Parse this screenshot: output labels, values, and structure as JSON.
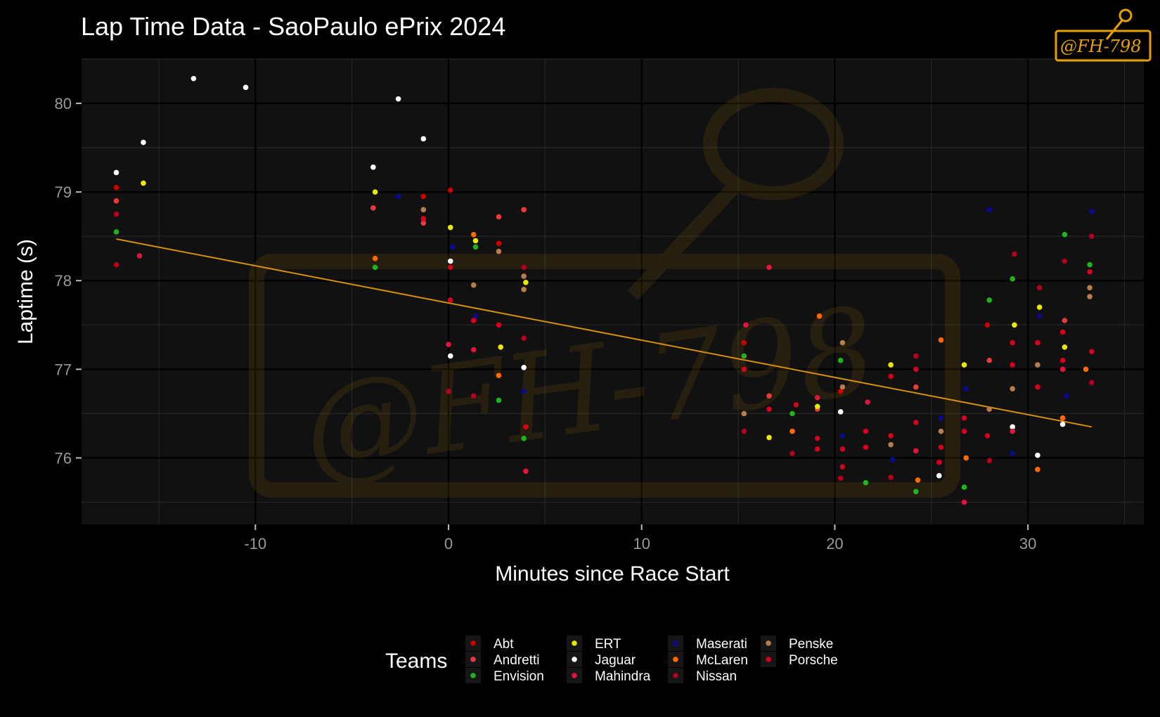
{
  "chart_data": {
    "type": "scatter",
    "title": "Lap Time Data - SaoPaulo ePrix 2024",
    "xlabel": "Minutes since Race Start",
    "ylabel": "Laptime (s)",
    "xlim": [
      -19,
      36
    ],
    "ylim": [
      75.25,
      80.5
    ],
    "x_ticks": [
      -10,
      0,
      10,
      20,
      30
    ],
    "y_ticks": [
      76,
      77,
      78,
      79,
      80
    ],
    "grid": true,
    "legend": {
      "title": "Teams",
      "position": "bottom"
    },
    "trend_line": {
      "color": "#d4900a",
      "points": [
        [
          -17.2,
          78.47
        ],
        [
          33.3,
          76.35
        ]
      ]
    },
    "watermark": "@FH-798",
    "series": [
      {
        "name": "Abt",
        "color": "#cc0000",
        "points": [
          [
            -17.2,
            79.05
          ],
          [
            -1.3,
            78.95
          ],
          [
            0.1,
            79.02
          ],
          [
            2.6,
            78.42
          ],
          [
            15.3,
            77.3
          ],
          [
            20.3,
            76.75
          ],
          [
            27.9,
            77.5
          ]
        ]
      },
      {
        "name": "Andretti",
        "color": "#e83a3a",
        "points": [
          [
            -17.2,
            78.9
          ],
          [
            -3.9,
            78.82
          ],
          [
            -1.3,
            78.65
          ],
          [
            2.6,
            78.72
          ],
          [
            3.9,
            78.8
          ],
          [
            16.6,
            76.7
          ],
          [
            19.1,
            76.55
          ],
          [
            24.2,
            76.8
          ],
          [
            28.0,
            77.1
          ],
          [
            31.9,
            77.55
          ]
        ]
      },
      {
        "name": "Envision",
        "color": "#1fb31f",
        "points": [
          [
            -17.2,
            78.55
          ],
          [
            -3.8,
            78.15
          ],
          [
            1.4,
            78.38
          ],
          [
            2.6,
            76.65
          ],
          [
            3.9,
            76.22
          ],
          [
            15.3,
            77.15
          ],
          [
            17.8,
            76.5
          ],
          [
            20.3,
            77.1
          ],
          [
            21.6,
            75.72
          ],
          [
            24.2,
            75.62
          ],
          [
            26.7,
            75.67
          ],
          [
            28.0,
            77.78
          ],
          [
            29.2,
            78.02
          ],
          [
            31.9,
            78.52
          ],
          [
            33.2,
            78.18
          ]
        ]
      },
      {
        "name": "ERT",
        "color": "#e8e800",
        "points": [
          [
            -15.8,
            79.1
          ],
          [
            -3.8,
            79.0
          ],
          [
            0.1,
            78.6
          ],
          [
            1.4,
            78.45
          ],
          [
            2.7,
            77.25
          ],
          [
            4.0,
            77.98
          ],
          [
            16.6,
            76.23
          ],
          [
            19.1,
            76.58
          ],
          [
            22.9,
            77.05
          ],
          [
            26.7,
            77.05
          ],
          [
            29.3,
            77.5
          ],
          [
            30.6,
            77.7
          ],
          [
            31.9,
            77.25
          ]
        ]
      },
      {
        "name": "Jaguar",
        "color": "#ffffff",
        "points": [
          [
            -17.2,
            79.22
          ],
          [
            -15.8,
            79.56
          ],
          [
            -13.2,
            80.28
          ],
          [
            -10.5,
            80.18
          ],
          [
            -3.9,
            79.28
          ],
          [
            -2.6,
            80.05
          ],
          [
            -1.3,
            79.6
          ],
          [
            0.1,
            77.15
          ],
          [
            0.1,
            78.22
          ],
          [
            3.9,
            77.02
          ],
          [
            20.3,
            76.52
          ],
          [
            25.4,
            75.8
          ],
          [
            29.2,
            76.35
          ],
          [
            30.5,
            76.03
          ],
          [
            31.8,
            76.38
          ]
        ]
      },
      {
        "name": "Mahindra",
        "color": "#e0143c",
        "points": [
          [
            -16.0,
            78.28
          ],
          [
            0.0,
            77.28
          ],
          [
            1.3,
            77.22
          ],
          [
            4.0,
            75.85
          ],
          [
            15.4,
            77.5
          ],
          [
            16.6,
            78.15
          ],
          [
            19.1,
            76.68
          ],
          [
            21.7,
            76.63
          ],
          [
            24.2,
            76.08
          ],
          [
            26.7,
            75.5
          ],
          [
            29.2,
            76.3
          ],
          [
            31.8,
            77.0
          ]
        ]
      },
      {
        "name": "Maserati",
        "color": "#0a0a8c",
        "points": [
          [
            -2.6,
            78.95
          ],
          [
            0.2,
            78.38
          ],
          [
            1.4,
            77.6
          ],
          [
            3.9,
            76.75
          ],
          [
            20.4,
            76.25
          ],
          [
            23.0,
            75.98
          ],
          [
            25.5,
            76.45
          ],
          [
            26.8,
            76.78
          ],
          [
            28.0,
            78.8
          ],
          [
            29.2,
            76.05
          ],
          [
            30.6,
            77.6
          ],
          [
            32.0,
            76.7
          ],
          [
            33.3,
            78.78
          ]
        ]
      },
      {
        "name": "McLaren",
        "color": "#ff6a00",
        "points": [
          [
            -3.8,
            78.25
          ],
          [
            1.3,
            78.52
          ],
          [
            2.6,
            76.93
          ],
          [
            17.8,
            76.3
          ],
          [
            19.2,
            77.6
          ],
          [
            24.3,
            75.75
          ],
          [
            25.5,
            77.33
          ],
          [
            26.8,
            76.0
          ],
          [
            30.5,
            75.87
          ],
          [
            31.8,
            76.45
          ],
          [
            33.0,
            77.0
          ]
        ]
      },
      {
        "name": "Nissan",
        "color": "#b3001e",
        "points": [
          [
            -17.2,
            78.75
          ],
          [
            -17.2,
            78.18
          ],
          [
            0.0,
            76.75
          ],
          [
            1.3,
            76.7
          ],
          [
            3.9,
            78.15
          ],
          [
            3.9,
            77.35
          ],
          [
            15.3,
            76.3
          ],
          [
            17.8,
            76.05
          ],
          [
            20.3,
            75.77
          ],
          [
            22.9,
            75.78
          ],
          [
            24.2,
            77.15
          ],
          [
            28.0,
            75.97
          ],
          [
            29.3,
            78.3
          ],
          [
            30.6,
            77.92
          ],
          [
            31.9,
            78.22
          ],
          [
            33.3,
            78.5
          ],
          [
            33.3,
            76.85
          ]
        ]
      },
      {
        "name": "Penske",
        "color": "#b87d4a",
        "points": [
          [
            -1.3,
            78.8
          ],
          [
            1.3,
            77.95
          ],
          [
            2.6,
            78.33
          ],
          [
            3.9,
            78.05
          ],
          [
            3.9,
            77.9
          ],
          [
            15.3,
            76.5
          ],
          [
            20.4,
            77.3
          ],
          [
            20.4,
            76.8
          ],
          [
            22.9,
            76.15
          ],
          [
            25.5,
            76.3
          ],
          [
            28.0,
            76.55
          ],
          [
            29.2,
            76.78
          ],
          [
            30.5,
            77.05
          ],
          [
            33.2,
            77.92
          ],
          [
            33.2,
            77.82
          ]
        ]
      },
      {
        "name": "Porsche",
        "color": "#d6001c",
        "points": [
          [
            -1.3,
            78.7
          ],
          [
            0.1,
            78.15
          ],
          [
            0.1,
            77.78
          ],
          [
            1.3,
            77.55
          ],
          [
            2.6,
            77.5
          ],
          [
            4.0,
            76.35
          ],
          [
            15.3,
            77.0
          ],
          [
            16.6,
            76.55
          ],
          [
            18.0,
            76.6
          ],
          [
            19.1,
            76.22
          ],
          [
            19.1,
            76.1
          ],
          [
            20.4,
            76.1
          ],
          [
            20.4,
            75.9
          ],
          [
            21.6,
            76.3
          ],
          [
            21.6,
            76.12
          ],
          [
            22.9,
            76.92
          ],
          [
            22.9,
            76.25
          ],
          [
            24.2,
            77.0
          ],
          [
            24.2,
            76.4
          ],
          [
            25.5,
            76.12
          ],
          [
            25.4,
            75.95
          ],
          [
            26.7,
            76.45
          ],
          [
            26.7,
            76.3
          ],
          [
            27.9,
            76.25
          ],
          [
            29.2,
            77.3
          ],
          [
            29.2,
            77.05
          ],
          [
            30.5,
            77.3
          ],
          [
            30.5,
            76.8
          ],
          [
            31.8,
            77.42
          ],
          [
            31.8,
            77.1
          ],
          [
            33.2,
            78.1
          ],
          [
            33.3,
            77.2
          ]
        ]
      }
    ]
  }
}
